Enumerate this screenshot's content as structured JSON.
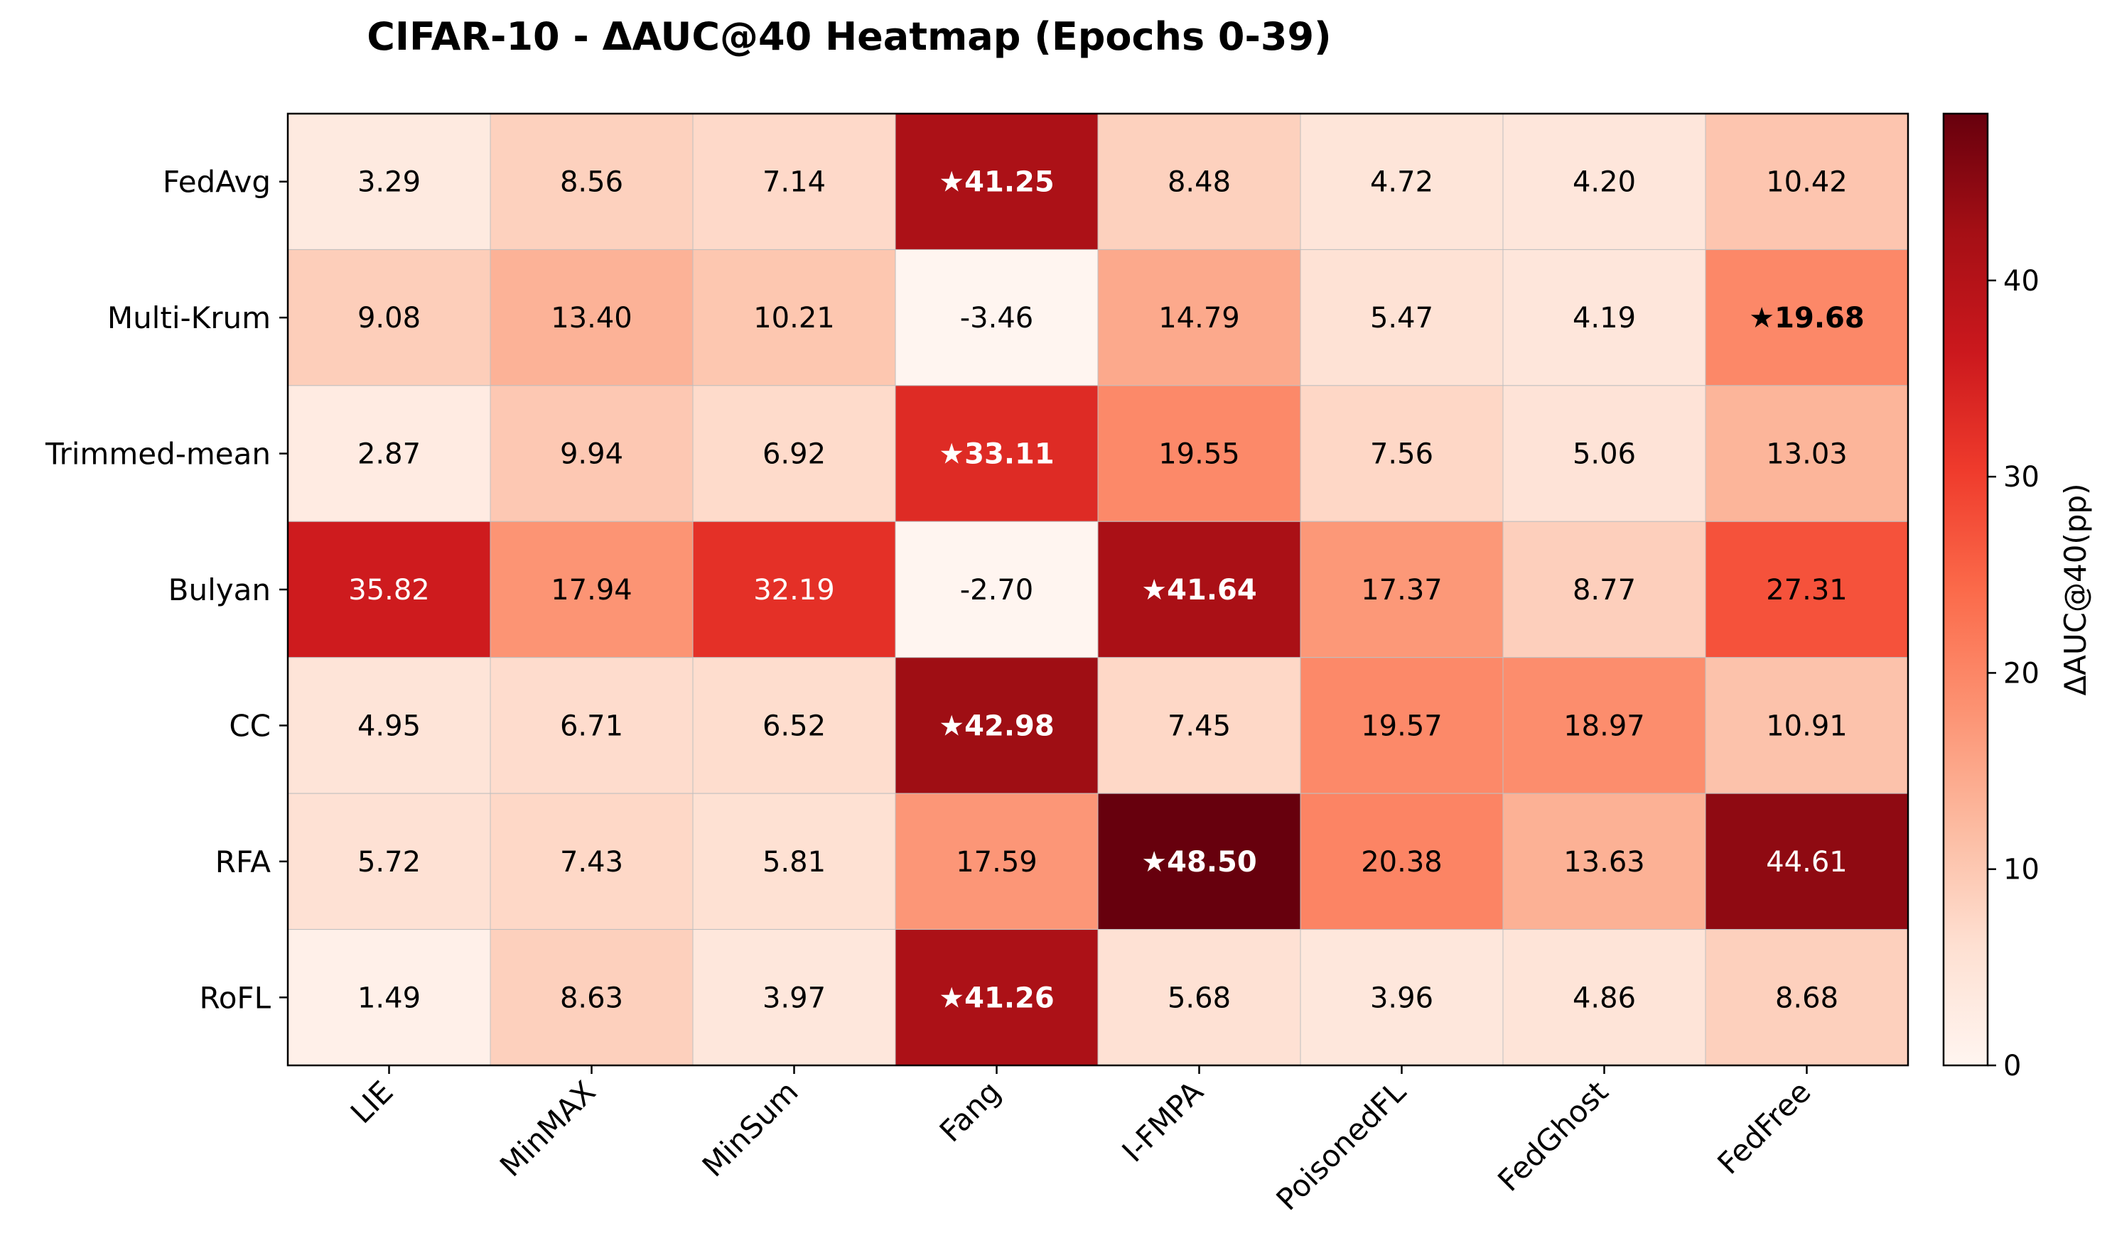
{
  "chart_data": {
    "type": "heatmap",
    "title": "CIFAR-10 - ΔAUC@40 Heatmap (Epochs 0-39)",
    "rows": [
      "FedAvg",
      "Multi-Krum",
      "Trimmed-mean",
      "Bulyan",
      "CC",
      "RFA",
      "RoFL"
    ],
    "columns": [
      "LIE",
      "MinMAX",
      "MinSum",
      "Fang",
      "I-FMPA",
      "PoisonedFL",
      "FedGhost",
      "FedFree"
    ],
    "values": [
      [
        3.29,
        8.56,
        7.14,
        41.25,
        8.48,
        4.72,
        4.2,
        10.42
      ],
      [
        9.08,
        13.4,
        10.21,
        -3.46,
        14.79,
        5.47,
        4.19,
        19.68
      ],
      [
        2.87,
        9.94,
        6.92,
        33.11,
        19.55,
        7.56,
        5.06,
        13.03
      ],
      [
        35.82,
        17.94,
        32.19,
        -2.7,
        41.64,
        17.37,
        8.77,
        27.31
      ],
      [
        4.95,
        6.71,
        6.52,
        42.98,
        7.45,
        19.57,
        18.97,
        10.91
      ],
      [
        5.72,
        7.43,
        5.81,
        17.59,
        48.5,
        20.38,
        13.63,
        44.61
      ],
      [
        1.49,
        8.63,
        3.97,
        41.26,
        5.68,
        3.96,
        4.86,
        8.68
      ]
    ],
    "cell_labels": [
      [
        "3.29",
        "8.56",
        "7.14",
        "★41.25",
        "8.48",
        "4.72",
        "4.20",
        "10.42"
      ],
      [
        "9.08",
        "13.40",
        "10.21",
        "-3.46",
        "14.79",
        "5.47",
        "4.19",
        "★19.68"
      ],
      [
        "2.87",
        "9.94",
        "6.92",
        "★33.11",
        "19.55",
        "7.56",
        "5.06",
        "13.03"
      ],
      [
        "35.82",
        "17.94",
        "32.19",
        "-2.70",
        "★41.64",
        "17.37",
        "8.77",
        "27.31"
      ],
      [
        "4.95",
        "6.71",
        "6.52",
        "★42.98",
        "7.45",
        "19.57",
        "18.97",
        "10.91"
      ],
      [
        "5.72",
        "7.43",
        "5.81",
        "17.59",
        "★48.50",
        "20.38",
        "13.63",
        "44.61"
      ],
      [
        "1.49",
        "8.63",
        "3.97",
        "★41.26",
        "5.68",
        "3.96",
        "4.86",
        "8.68"
      ]
    ],
    "best_per_row": [
      3,
      7,
      3,
      4,
      3,
      4,
      3
    ],
    "colorbar": {
      "label": "ΔAUC@40(pp)",
      "range": [
        0,
        48.5
      ],
      "ticks": [
        0,
        10,
        20,
        30,
        40
      ],
      "colormap": "Reds"
    }
  }
}
